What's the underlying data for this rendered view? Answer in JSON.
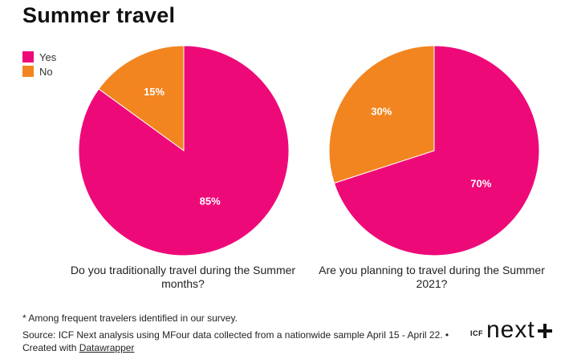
{
  "title": "Summer travel",
  "colors": {
    "yes": "#EE0979",
    "no": "#F28520"
  },
  "legend": [
    {
      "label": "Yes",
      "color": "#EE0979"
    },
    {
      "label": "No",
      "color": "#F28520"
    }
  ],
  "chart_data": [
    {
      "type": "pie",
      "question": "Do you traditionally travel during the Summer months?",
      "slices": [
        {
          "label": "Yes",
          "value": 85,
          "display": "85%"
        },
        {
          "label": "No",
          "value": 15,
          "display": "15%"
        }
      ]
    },
    {
      "type": "pie",
      "question": "Are you planning to travel during the Summer 2021?",
      "slices": [
        {
          "label": "Yes",
          "value": 70,
          "display": "70%"
        },
        {
          "label": "No",
          "value": 30,
          "display": "30%"
        }
      ]
    }
  ],
  "footnote": "* Among frequent travelers identified in our survey.",
  "source": "Source: ICF Next analysis using MFour data collected from a nationwide sample April 15 - April 22. •",
  "created_prefix": "Created with",
  "created_link": "Datawrapper",
  "logo": {
    "small": "ICF",
    "big": "next"
  }
}
